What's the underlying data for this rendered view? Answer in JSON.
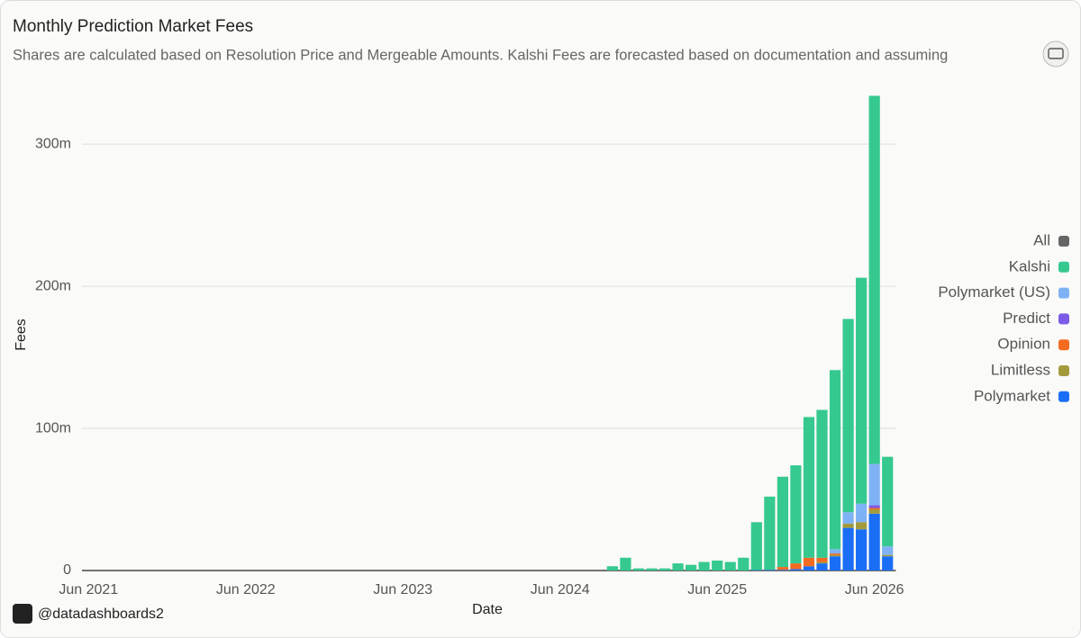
{
  "chart_data": {
    "type": "bar",
    "stacked": true,
    "title": "Monthly Prediction Market Fees",
    "subtitle": "Shares are calculated based on Resolution Price and Mergeable Amounts. Kalshi Fees are forecasted based on documentation and assuming",
    "x_label": "Date",
    "y_label": "Fees",
    "watermark": "@datadashboards2",
    "legend_position": "right",
    "grid": true,
    "ylim": [
      0,
      340000000
    ],
    "yticks": [
      0,
      {
        "value": 100000000,
        "label": "100m"
      },
      {
        "value": 200000000,
        "label": "200m"
      },
      {
        "value": 300000000,
        "label": "300m"
      }
    ],
    "categories": [
      "Jun 2021",
      null,
      null,
      null,
      null,
      null,
      null,
      null,
      null,
      null,
      null,
      null,
      "Jun 2022",
      null,
      null,
      null,
      null,
      null,
      null,
      null,
      null,
      null,
      null,
      null,
      "Jun 2023",
      null,
      null,
      null,
      null,
      null,
      null,
      null,
      null,
      null,
      null,
      null,
      "Jun 2024",
      null,
      null,
      null,
      null,
      null,
      null,
      null,
      null,
      null,
      null,
      null,
      "Jun 2025",
      null,
      null,
      null,
      null,
      null,
      null,
      null,
      null,
      null,
      null,
      null,
      "Jun 2026",
      null
    ],
    "series": [
      {
        "name": "All",
        "color": "#666666",
        "values": [
          0,
          0,
          0,
          0,
          0,
          0,
          0,
          0,
          0,
          0,
          0,
          0,
          0,
          0,
          0,
          0,
          0,
          0,
          0,
          0,
          0,
          0,
          0,
          0,
          0,
          0,
          0,
          0,
          0,
          0,
          0,
          0,
          0,
          0,
          0,
          0,
          0,
          0,
          0,
          0,
          0,
          0,
          0,
          0,
          0,
          0,
          0,
          0,
          0,
          0,
          0,
          0,
          0,
          0,
          0,
          0,
          0,
          0,
          0,
          0,
          0,
          0
        ]
      },
      {
        "name": "Kalshi",
        "color": "#35c98f",
        "values": [
          0,
          0,
          0,
          0,
          0,
          0,
          0,
          0,
          0,
          0,
          0,
          0,
          0,
          0,
          0,
          0,
          0,
          0,
          0,
          0,
          0,
          0,
          0,
          0,
          0,
          0,
          0,
          0,
          0,
          0,
          0,
          0,
          0,
          0,
          0,
          0,
          0,
          0,
          0,
          0,
          3000000,
          9000000,
          1500000,
          1500000,
          1500000,
          5000000,
          4000000,
          6000000,
          7000000,
          6000000,
          9000000,
          33700000,
          51500000,
          63500000,
          69000000,
          99000000,
          104000000,
          126000000,
          136000000,
          159000000,
          259000000,
          63000000
        ]
      },
      {
        "name": "Polymarket (US)",
        "color": "#7fb2f5",
        "values": [
          0,
          0,
          0,
          0,
          0,
          0,
          0,
          0,
          0,
          0,
          0,
          0,
          0,
          0,
          0,
          0,
          0,
          0,
          0,
          0,
          0,
          0,
          0,
          0,
          0,
          0,
          0,
          0,
          0,
          0,
          0,
          0,
          0,
          0,
          0,
          0,
          0,
          0,
          0,
          0,
          0,
          0,
          0,
          0,
          0,
          0,
          0,
          0,
          0,
          0,
          0,
          0,
          0,
          0,
          0,
          0,
          0,
          3000000,
          8000000,
          13000000,
          29000000,
          6000000
        ]
      },
      {
        "name": "Predict",
        "color": "#7b5ce6",
        "values": [
          0,
          0,
          0,
          0,
          0,
          0,
          0,
          0,
          0,
          0,
          0,
          0,
          0,
          0,
          0,
          0,
          0,
          0,
          0,
          0,
          0,
          0,
          0,
          0,
          0,
          0,
          0,
          0,
          0,
          0,
          0,
          0,
          0,
          0,
          0,
          0,
          0,
          0,
          0,
          0,
          0,
          0,
          0,
          0,
          0,
          0,
          0,
          0,
          0,
          0,
          0,
          0,
          0,
          0,
          0,
          0,
          0,
          0,
          0,
          0,
          2000000,
          0
        ]
      },
      {
        "name": "Opinion",
        "color": "#f26b21",
        "values": [
          0,
          0,
          0,
          0,
          0,
          0,
          0,
          0,
          0,
          0,
          0,
          0,
          0,
          0,
          0,
          0,
          0,
          0,
          0,
          0,
          0,
          0,
          0,
          0,
          0,
          0,
          0,
          0,
          0,
          0,
          0,
          0,
          0,
          0,
          0,
          0,
          0,
          0,
          0,
          0,
          0,
          0,
          0,
          0,
          0,
          0,
          0,
          0,
          0,
          0,
          0,
          0,
          0,
          2000000,
          4000000,
          6000000,
          3000000,
          1000000,
          0,
          0,
          1000000,
          0
        ]
      },
      {
        "name": "Limitless",
        "color": "#a39a3c",
        "values": [
          0,
          0,
          0,
          0,
          0,
          0,
          0,
          0,
          0,
          0,
          0,
          0,
          0,
          0,
          0,
          0,
          0,
          0,
          0,
          0,
          0,
          0,
          0,
          0,
          0,
          0,
          0,
          0,
          0,
          0,
          0,
          0,
          0,
          0,
          0,
          0,
          0,
          0,
          0,
          0,
          0,
          0,
          0,
          0,
          0,
          0,
          0,
          0,
          0,
          0,
          0,
          0,
          0,
          0,
          0,
          0,
          1000000,
          1000000,
          3000000,
          5000000,
          3000000,
          1000000
        ]
      },
      {
        "name": "Polymarket",
        "color": "#1a6ef5",
        "values": [
          0,
          0,
          0,
          0,
          0,
          0,
          0,
          0,
          0,
          0,
          0,
          0,
          0,
          0,
          0,
          0,
          0,
          0,
          0,
          0,
          0,
          0,
          0,
          0,
          0,
          0,
          0,
          0,
          0,
          0,
          0,
          0,
          0,
          0,
          0,
          0,
          0,
          0,
          0,
          0,
          0,
          0,
          0,
          0,
          0,
          0,
          0,
          0,
          0,
          0,
          0,
          300000,
          500000,
          500000,
          1000000,
          3000000,
          5000000,
          10000000,
          30000000,
          29000000,
          40000000,
          10000000
        ]
      }
    ]
  }
}
